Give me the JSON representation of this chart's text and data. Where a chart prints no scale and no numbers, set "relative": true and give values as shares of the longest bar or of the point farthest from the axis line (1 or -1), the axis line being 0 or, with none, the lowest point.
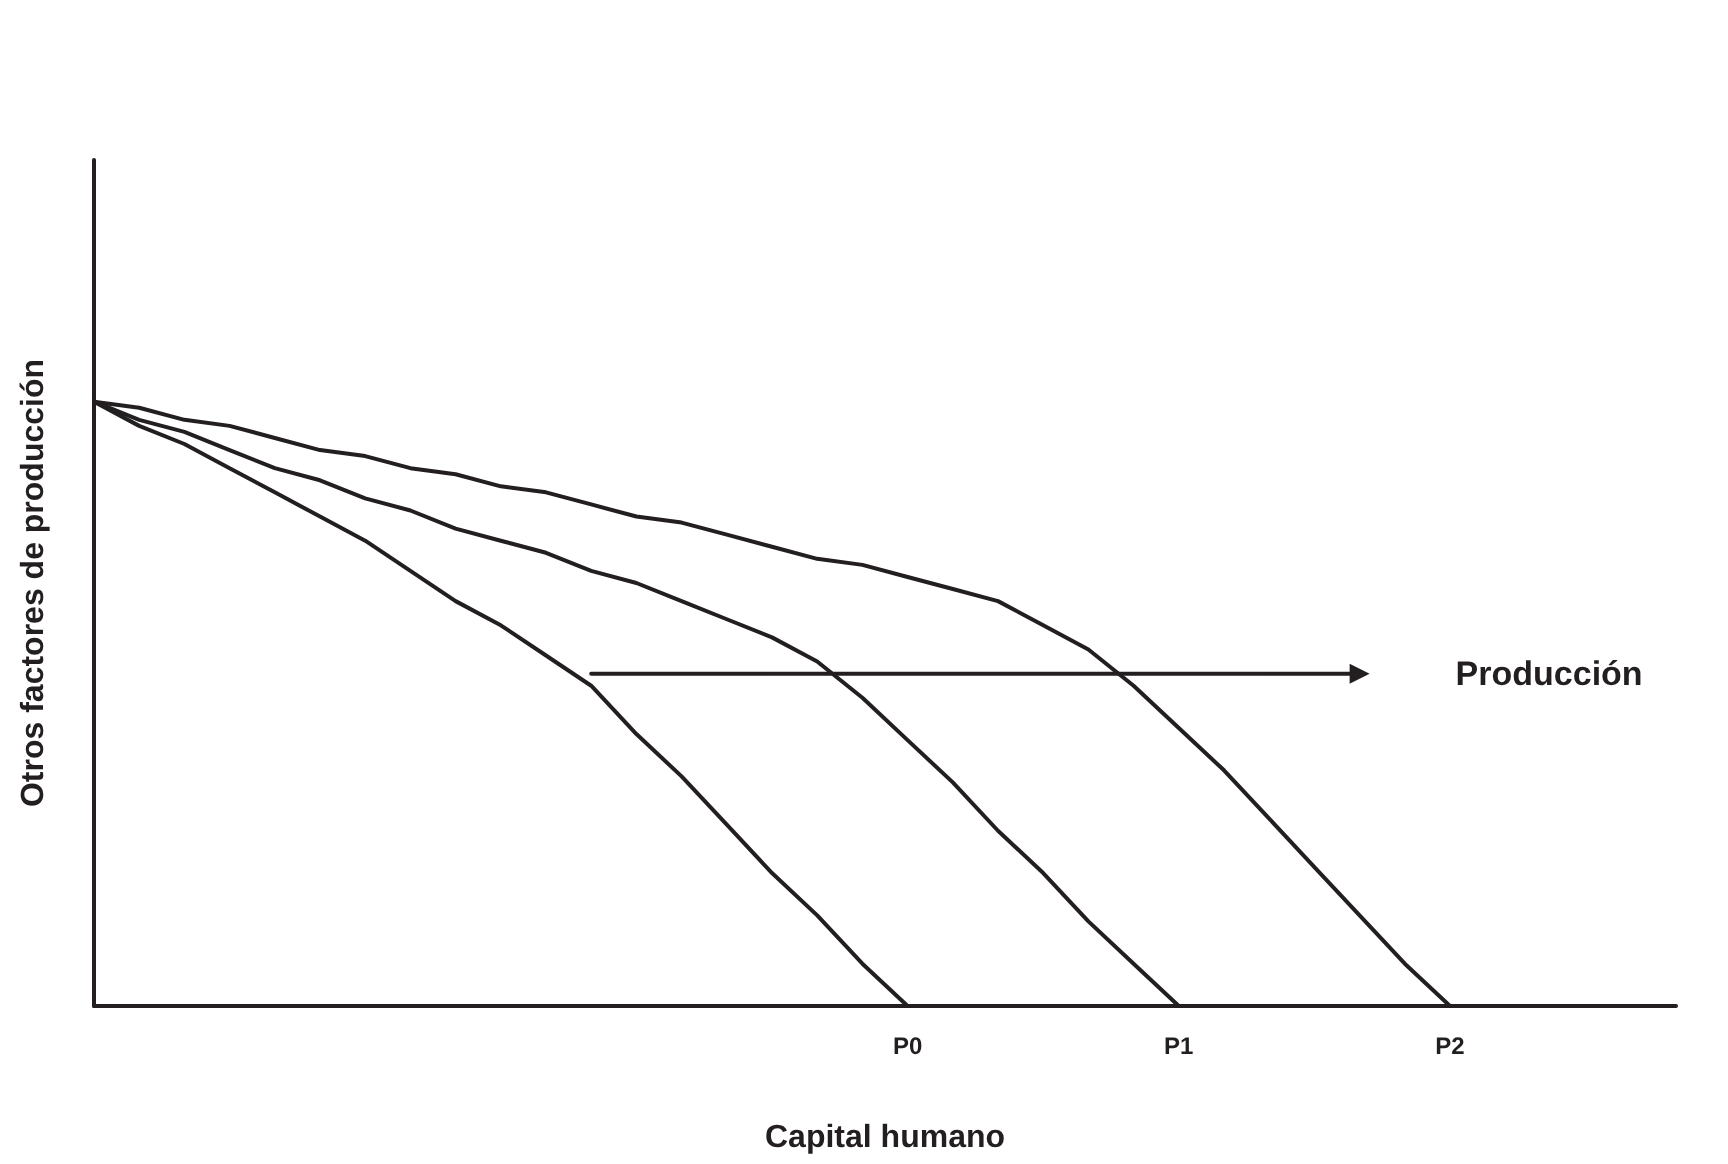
{
  "chart_data": {
    "type": "line",
    "relative": true,
    "xlabel": "Capital humano",
    "ylabel": "Otros factores de producción",
    "categories": [
      null,
      null,
      null,
      null,
      null,
      null,
      null,
      null,
      null,
      null,
      null,
      null,
      null,
      null,
      null,
      null,
      null,
      null,
      "P0",
      null,
      null,
      null,
      null,
      null,
      "P1",
      null,
      null,
      null,
      null,
      null,
      "P2",
      null,
      null,
      null,
      null,
      null
    ],
    "tick_labels": "x",
    "grid": false,
    "marker": "none",
    "line_style": "solid",
    "series": [
      {
        "color": "#231f20",
        "values": [
          1,
          0.96,
          0.93,
          0.89,
          0.85,
          0.81,
          0.77,
          0.72,
          0.67,
          0.63,
          0.58,
          0.53,
          0.45,
          0.38,
          0.3,
          0.22,
          0.15,
          0.07,
          0,
          null,
          null,
          null,
          null,
          null,
          null,
          null,
          null,
          null,
          null,
          null,
          null,
          null,
          null,
          null,
          null,
          null
        ]
      },
      {
        "color": "#231f20",
        "values": [
          1,
          0.97,
          0.95,
          0.92,
          0.89,
          0.87,
          0.84,
          0.82,
          0.79,
          0.77,
          0.75,
          0.72,
          0.7,
          0.67,
          0.64,
          0.61,
          0.57,
          0.51,
          0.44,
          0.37,
          0.29,
          0.22,
          0.14,
          0.07,
          0,
          null,
          null,
          null,
          null,
          null,
          null,
          null,
          null,
          null,
          null,
          null
        ]
      },
      {
        "color": "#231f20",
        "values": [
          1,
          0.99,
          0.97,
          0.96,
          0.94,
          0.92,
          0.91,
          0.89,
          0.88,
          0.86,
          0.85,
          0.83,
          0.81,
          0.8,
          0.78,
          0.76,
          0.74,
          0.73,
          0.71,
          0.69,
          0.67,
          0.63,
          0.59,
          0.53,
          0.46,
          0.39,
          0.31,
          0.23,
          0.15,
          0.07,
          0,
          null,
          null,
          null,
          null,
          null
        ]
      },
      {
        "color": "#231f20",
        "values": [
          null,
          null,
          null,
          null,
          null,
          null,
          null,
          null,
          null,
          null,
          null,
          0.55,
          0.55,
          0.55,
          0.55,
          0.55,
          0.55,
          0.55,
          0.55,
          0.55,
          0.55,
          0.55,
          0.55,
          0.55,
          0.55,
          0.55,
          0.55,
          0.55,
          0.55,
          null,
          null,
          null,
          null,
          null,
          null,
          null
        ]
      }
    ],
    "annotations": [
      "Producción"
    ]
  }
}
